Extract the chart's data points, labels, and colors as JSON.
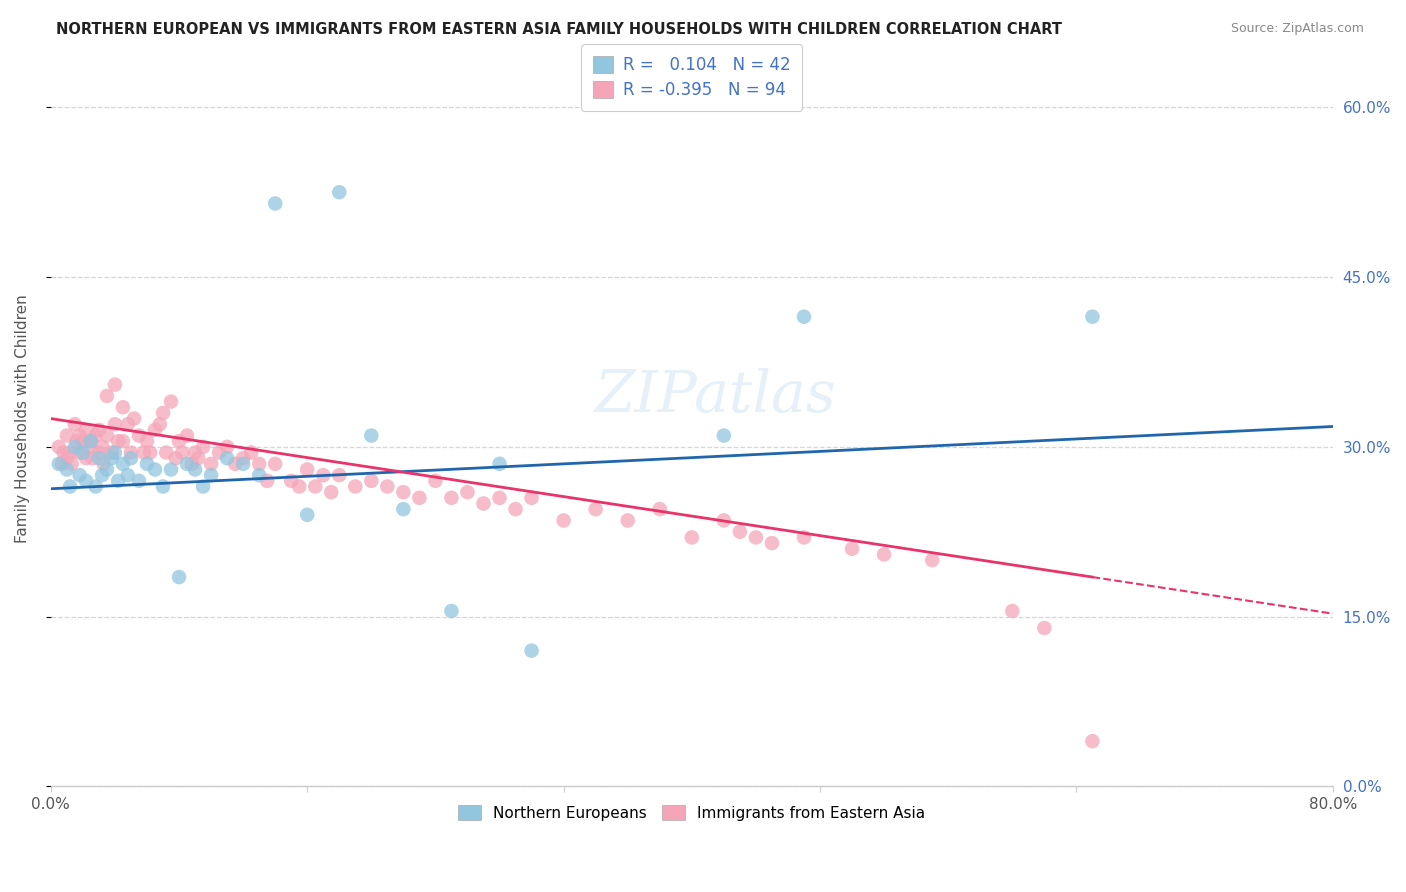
{
  "title": "NORTHERN EUROPEAN VS IMMIGRANTS FROM EASTERN ASIA FAMILY HOUSEHOLDS WITH CHILDREN CORRELATION CHART",
  "source": "Source: ZipAtlas.com",
  "ylabel": "Family Households with Children",
  "xlim": [
    0.0,
    0.8
  ],
  "ylim": [
    0.0,
    0.65
  ],
  "R_blue": 0.104,
  "N_blue": 42,
  "R_pink": -0.395,
  "N_pink": 94,
  "blue_color": "#92c5de",
  "pink_color": "#f4a6b8",
  "blue_line_color": "#2166ac",
  "pink_line_color": "#e8346a",
  "watermark": "ZIPatlas",
  "blue_scatter_x": [
    0.005,
    0.01,
    0.012,
    0.015,
    0.018,
    0.02,
    0.022,
    0.025,
    0.028,
    0.03,
    0.032,
    0.035,
    0.038,
    0.04,
    0.042,
    0.045,
    0.048,
    0.05,
    0.055,
    0.06,
    0.065,
    0.07,
    0.075,
    0.08,
    0.085,
    0.09,
    0.095,
    0.1,
    0.11,
    0.12,
    0.13,
    0.14,
    0.16,
    0.18,
    0.2,
    0.22,
    0.25,
    0.28,
    0.3,
    0.42,
    0.47,
    0.65
  ],
  "blue_scatter_y": [
    0.285,
    0.28,
    0.265,
    0.3,
    0.275,
    0.295,
    0.27,
    0.305,
    0.265,
    0.29,
    0.275,
    0.28,
    0.29,
    0.295,
    0.27,
    0.285,
    0.275,
    0.29,
    0.27,
    0.285,
    0.28,
    0.265,
    0.28,
    0.185,
    0.285,
    0.28,
    0.265,
    0.275,
    0.29,
    0.285,
    0.275,
    0.515,
    0.24,
    0.525,
    0.31,
    0.245,
    0.155,
    0.285,
    0.12,
    0.31,
    0.415,
    0.415
  ],
  "pink_scatter_x": [
    0.005,
    0.007,
    0.008,
    0.01,
    0.01,
    0.012,
    0.013,
    0.015,
    0.016,
    0.018,
    0.018,
    0.02,
    0.022,
    0.022,
    0.024,
    0.025,
    0.026,
    0.028,
    0.03,
    0.03,
    0.032,
    0.033,
    0.035,
    0.035,
    0.038,
    0.04,
    0.04,
    0.042,
    0.045,
    0.045,
    0.048,
    0.05,
    0.052,
    0.055,
    0.058,
    0.06,
    0.062,
    0.065,
    0.068,
    0.07,
    0.072,
    0.075,
    0.078,
    0.08,
    0.082,
    0.085,
    0.088,
    0.09,
    0.092,
    0.095,
    0.1,
    0.105,
    0.11,
    0.115,
    0.12,
    0.125,
    0.13,
    0.135,
    0.14,
    0.15,
    0.155,
    0.16,
    0.165,
    0.17,
    0.175,
    0.18,
    0.19,
    0.2,
    0.21,
    0.22,
    0.23,
    0.24,
    0.25,
    0.26,
    0.27,
    0.28,
    0.29,
    0.3,
    0.32,
    0.34,
    0.36,
    0.38,
    0.4,
    0.42,
    0.43,
    0.44,
    0.45,
    0.47,
    0.5,
    0.52,
    0.55,
    0.6,
    0.62,
    0.65
  ],
  "pink_scatter_y": [
    0.3,
    0.285,
    0.295,
    0.29,
    0.31,
    0.295,
    0.285,
    0.32,
    0.305,
    0.295,
    0.31,
    0.305,
    0.29,
    0.315,
    0.3,
    0.305,
    0.29,
    0.31,
    0.295,
    0.315,
    0.3,
    0.285,
    0.31,
    0.345,
    0.295,
    0.32,
    0.355,
    0.305,
    0.335,
    0.305,
    0.32,
    0.295,
    0.325,
    0.31,
    0.295,
    0.305,
    0.295,
    0.315,
    0.32,
    0.33,
    0.295,
    0.34,
    0.29,
    0.305,
    0.295,
    0.31,
    0.285,
    0.295,
    0.29,
    0.3,
    0.285,
    0.295,
    0.3,
    0.285,
    0.29,
    0.295,
    0.285,
    0.27,
    0.285,
    0.27,
    0.265,
    0.28,
    0.265,
    0.275,
    0.26,
    0.275,
    0.265,
    0.27,
    0.265,
    0.26,
    0.255,
    0.27,
    0.255,
    0.26,
    0.25,
    0.255,
    0.245,
    0.255,
    0.235,
    0.245,
    0.235,
    0.245,
    0.22,
    0.235,
    0.225,
    0.22,
    0.215,
    0.22,
    0.21,
    0.205,
    0.2,
    0.155,
    0.14,
    0.04
  ],
  "pink_line_x_solid_end": 0.65,
  "pink_line_x_dash_end": 0.8,
  "blue_line_y0": 0.263,
  "blue_line_y1": 0.318,
  "pink_line_y0": 0.325,
  "pink_line_y1": 0.185
}
